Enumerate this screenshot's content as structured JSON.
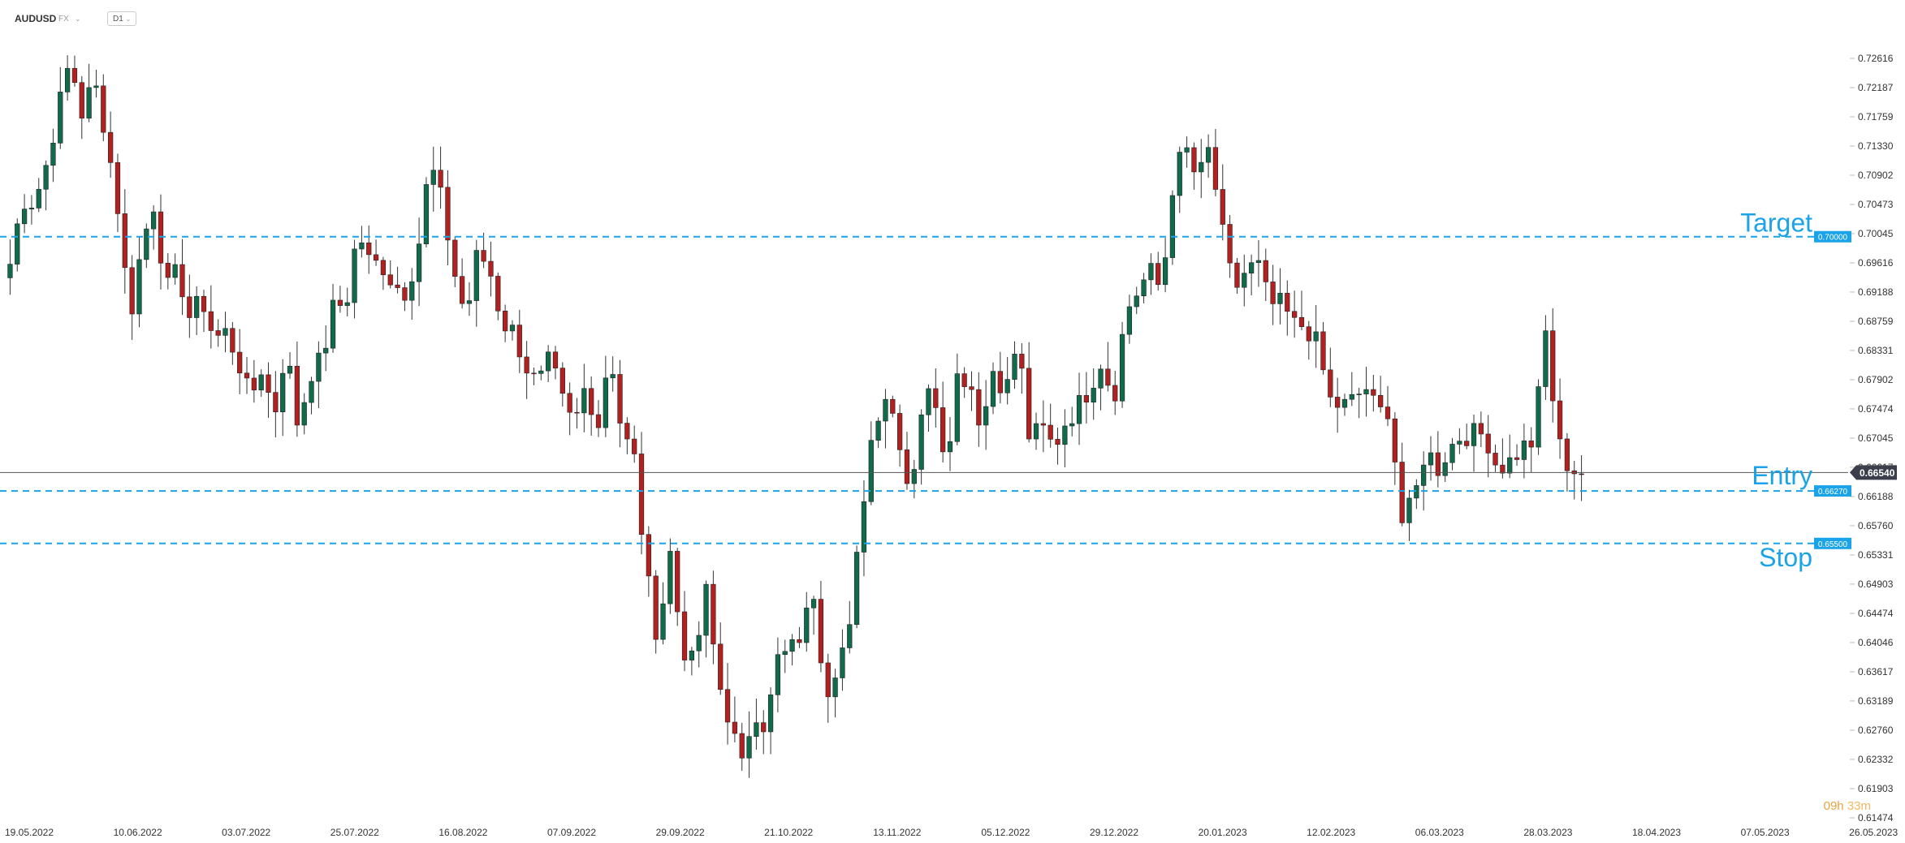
{
  "toolbar": {
    "symbol": "AUDUSD",
    "market": "FX",
    "timeframe": "D1"
  },
  "timer": {
    "hours": "09h",
    "minutes": "33m"
  },
  "chart_data": {
    "type": "candlestick",
    "symbol": "AUDUSD",
    "timeframe": "D1",
    "ylim": [
      0.61474,
      0.7283
    ],
    "y_ticks": [
      "0.72616",
      "0.72187",
      "0.71759",
      "0.71330",
      "0.70902",
      "0.70473",
      "0.70045",
      "0.69616",
      "0.69188",
      "0.68759",
      "0.68331",
      "0.67902",
      "0.67474",
      "0.67045",
      "0.66617",
      "0.66188",
      "0.65760",
      "0.65331",
      "0.64903",
      "0.64474",
      "0.64046",
      "0.63617",
      "0.63189",
      "0.62760",
      "0.62332",
      "0.61903",
      "0.61474"
    ],
    "x_ticks": [
      "19.05.2022",
      "10.06.2022",
      "03.07.2022",
      "25.07.2022",
      "16.08.2022",
      "07.09.2022",
      "29.09.2022",
      "21.10.2022",
      "13.11.2022",
      "05.12.2022",
      "29.12.2022",
      "20.01.2023",
      "12.02.2023",
      "06.03.2023",
      "28.03.2023",
      "18.04.2023",
      "07.05.2023",
      "26.05.2023"
    ],
    "current_price": "0.66540",
    "levels": [
      {
        "name": "Target",
        "value": 0.7,
        "label": "0.70000",
        "color": "#1aa3e8"
      },
      {
        "name": "Entry",
        "value": 0.6627,
        "label": "0.66270",
        "color": "#1aa3e8"
      },
      {
        "name": "Stop",
        "value": 0.655,
        "label": "0.65500",
        "color": "#1aa3e8"
      }
    ],
    "colors": {
      "up": "#0f6b4a",
      "down": "#b32020",
      "wick": "#333333",
      "line": "#1aa3e8"
    },
    "close_path": [
      [
        0.696,
        0.7055,
        0.705,
        0.7105,
        0.7185,
        0.726,
        0.718,
        0.723
      ],
      [
        0.715,
        0.704,
        0.688,
        0.699,
        0.705,
        0.692,
        0.695,
        0.688,
        0.691
      ],
      [
        0.685,
        0.686,
        0.682,
        0.676,
        0.681,
        0.6735,
        0.684,
        0.672,
        0.68,
        0.682
      ],
      [
        0.69,
        0.69,
        0.701,
        0.696,
        0.696,
        0.693,
        0.692,
        0.698
      ],
      [
        0.711,
        0.705,
        0.695,
        0.688,
        0.698,
        0.695,
        0.6875,
        0.686
      ],
      [
        0.681,
        0.678,
        0.682,
        0.676,
        0.672,
        0.6785,
        0.672,
        0.684,
        0.671,
        0.668
      ],
      [
        0.651,
        0.641,
        0.654,
        0.64,
        0.637,
        0.648,
        0.635,
        0.629,
        0.622,
        0.631
      ],
      [
        0.628,
        0.638,
        0.639,
        0.642,
        0.648,
        0.633,
        0.638
      ],
      [
        0.642,
        0.66,
        0.673,
        0.677,
        0.672,
        0.662,
        0.675,
        0.678,
        0.667
      ],
      [
        0.68,
        0.679,
        0.672,
        0.681,
        0.677,
        0.685,
        0.67,
        0.672,
        0.669
      ],
      [
        0.673,
        0.675,
        0.678,
        0.682,
        0.676,
        0.689,
        0.692,
        0.695,
        0.692
      ],
      [
        0.709,
        0.713,
        0.708,
        0.713,
        0.701,
        0.692,
        0.695,
        0.696,
        0.69
      ],
      [
        0.69,
        0.687,
        0.687,
        0.684,
        0.676,
        0.675,
        0.676,
        0.678,
        0.674,
        0.675
      ],
      [
        0.658,
        0.661,
        0.669,
        0.666,
        0.669,
        0.671,
        0.671,
        0.671,
        0.666
      ],
      [
        0.667,
        0.669,
        0.67,
        0.686,
        0.67,
        0.666,
        0.6654
      ]
    ]
  }
}
